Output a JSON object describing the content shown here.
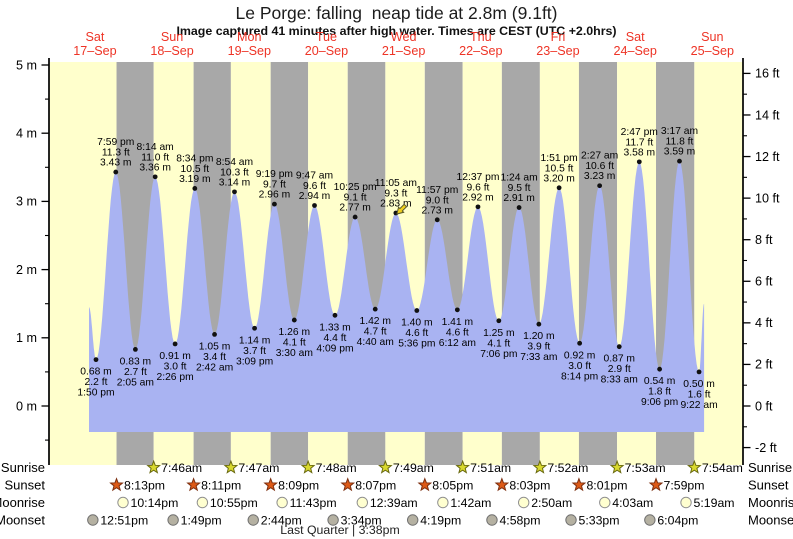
{
  "title": "Le Porge: falling  neap tide at 2.8m (9.1ft)",
  "subtitle": "Image captured 41 minutes after high water. Times are CEST (UTC +2.0hrs)",
  "colors": {
    "background": "#ffffff",
    "day_band": "#ffffcc",
    "night_band": "#a8a8a8",
    "tide_fill": "#a9b3f2",
    "day_label": "#ee3426",
    "axis": "#000000",
    "event_text": "#000000",
    "marker": "#f0cf1e",
    "marker_stroke": "#55552a",
    "sunrise_fill": "#d9d92e",
    "sunrise_stroke": "#6a6a10",
    "sunset_fill": "#dd5a17",
    "sunset_stroke": "#7c2f10",
    "moonrise_fill": "#ffffd0",
    "moonrise_stroke": "#909090",
    "moonset_fill": "#b5b1a2",
    "moonset_stroke": "#707070"
  },
  "chart_data": {
    "type": "area",
    "title": "Le Porge: falling  neap tide at 2.8m (9.1ft)",
    "subtitle": "Image captured 41 minutes after high water. Times are CEST (UTC +2.0hrs)",
    "ylabel_left": "meters",
    "ylabel_right": "feet",
    "y_axis_left": {
      "tick_labels": [
        "5 m",
        "4 m",
        "3 m",
        "2 m",
        "1 m",
        "0 m"
      ],
      "major_ticks_m": [
        0,
        1,
        2,
        3,
        4,
        5
      ],
      "minor_ticks_m": [
        -0.5,
        0.5,
        1.5,
        2.5,
        3.5,
        4.5
      ],
      "range_m": [
        -0.9,
        5.05
      ]
    },
    "y_axis_right": {
      "tick_labels": [
        "16 ft",
        "14 ft",
        "12 ft",
        "10 ft",
        "8 ft",
        "6 ft",
        "4 ft",
        "2 ft",
        "0 ft",
        "-2 ft"
      ],
      "major_ticks_ft": [
        -2,
        0,
        2,
        4,
        6,
        8,
        10,
        12,
        14,
        16
      ],
      "minor_ticks_ft": [
        -1,
        1,
        3,
        5,
        7,
        9,
        11,
        13,
        15
      ]
    },
    "x_axis": {
      "days": [
        {
          "name": "Sat",
          "date": "17–Sep"
        },
        {
          "name": "Sun",
          "date": "18–Sep"
        },
        {
          "name": "Mon",
          "date": "19–Sep"
        },
        {
          "name": "Tue",
          "date": "20–Sep"
        },
        {
          "name": "Wed",
          "date": "21–Sep"
        },
        {
          "name": "Thu",
          "date": "22–Sep"
        },
        {
          "name": "Fri",
          "date": "23–Sep"
        },
        {
          "name": "Sat",
          "date": "24–Sep"
        },
        {
          "name": "Sun",
          "date": "25–Sep"
        }
      ]
    },
    "tide_events": [
      {
        "day": 0,
        "time": "1:50 pm",
        "type": "low",
        "height_m": 0.68,
        "height_ft": 2.2
      },
      {
        "day": 0,
        "time": "7:59 pm",
        "type": "high",
        "height_m": 3.43,
        "height_ft": 11.3
      },
      {
        "day": 1,
        "time": "2:05 am",
        "type": "low",
        "height_m": 0.83,
        "height_ft": 2.7
      },
      {
        "day": 1,
        "time": "8:14 am",
        "type": "high",
        "height_m": 3.36,
        "height_ft": 11.0
      },
      {
        "day": 1,
        "time": "2:26 pm",
        "type": "low",
        "height_m": 0.91,
        "height_ft": 3.0
      },
      {
        "day": 1,
        "time": "8:34 pm",
        "type": "high",
        "height_m": 3.19,
        "height_ft": 10.5
      },
      {
        "day": 2,
        "time": "2:42 am",
        "type": "low",
        "height_m": 1.05,
        "height_ft": 3.4
      },
      {
        "day": 2,
        "time": "8:54 am",
        "type": "high",
        "height_m": 3.14,
        "height_ft": 10.3
      },
      {
        "day": 2,
        "time": "3:09 pm",
        "type": "low",
        "height_m": 1.14,
        "height_ft": 3.7
      },
      {
        "day": 2,
        "time": "9:19 pm",
        "type": "high",
        "height_m": 2.96,
        "height_ft": 9.7
      },
      {
        "day": 3,
        "time": "3:30 am",
        "type": "low",
        "height_m": 1.26,
        "height_ft": 4.1
      },
      {
        "day": 3,
        "time": "9:47 am",
        "type": "high",
        "height_m": 2.94,
        "height_ft": 9.6
      },
      {
        "day": 3,
        "time": "4:09 pm",
        "type": "low",
        "height_m": 1.33,
        "height_ft": 4.4
      },
      {
        "day": 3,
        "time": "10:25 pm",
        "type": "high",
        "height_m": 2.77,
        "height_ft": 9.1
      },
      {
        "day": 4,
        "time": "4:40 am",
        "type": "low",
        "height_m": 1.42,
        "height_ft": 4.7
      },
      {
        "day": 4,
        "time": "11:05 am",
        "type": "high",
        "height_m": 2.83,
        "height_ft": 9.3
      },
      {
        "day": 4,
        "time": "5:36 pm",
        "type": "low",
        "height_m": 1.4,
        "height_ft": 4.6
      },
      {
        "day": 4,
        "time": "11:57 pm",
        "type": "high",
        "height_m": 2.73,
        "height_ft": 9.0
      },
      {
        "day": 5,
        "time": "6:12 am",
        "type": "low",
        "height_m": 1.41,
        "height_ft": 4.6
      },
      {
        "day": 5,
        "time": "12:37 pm",
        "type": "high",
        "height_m": 2.92,
        "height_ft": 9.6
      },
      {
        "day": 5,
        "time": "7:06 pm",
        "type": "low",
        "height_m": 1.25,
        "height_ft": 4.1
      },
      {
        "day": 6,
        "time": "1:24 am",
        "type": "high",
        "height_m": 2.91,
        "height_ft": 9.5
      },
      {
        "day": 6,
        "time": "7:33 am",
        "type": "low",
        "height_m": 1.2,
        "height_ft": 3.9
      },
      {
        "day": 6,
        "time": "1:51 pm",
        "type": "high",
        "height_m": 3.2,
        "height_ft": 10.5
      },
      {
        "day": 6,
        "time": "8:14 pm",
        "type": "low",
        "height_m": 0.92,
        "height_ft": 3.0
      },
      {
        "day": 7,
        "time": "2:27 am",
        "type": "high",
        "height_m": 3.23,
        "height_ft": 10.6
      },
      {
        "day": 7,
        "time": "8:33 am",
        "type": "low",
        "height_m": 0.87,
        "height_ft": 2.9
      },
      {
        "day": 7,
        "time": "2:47 pm",
        "type": "high",
        "height_m": 3.58,
        "height_ft": 11.7
      },
      {
        "day": 7,
        "time": "9:06 pm",
        "type": "low",
        "height_m": 0.54,
        "height_ft": 1.8
      },
      {
        "day": 8,
        "time": "3:17 am",
        "type": "high",
        "height_m": 3.59,
        "height_ft": 11.8
      },
      {
        "day": 8,
        "time": "9:22 am",
        "type": "low",
        "height_m": 0.5,
        "height_ft": 1.6
      }
    ],
    "captured_event_index": 15
  },
  "astro": {
    "rows": [
      {
        "label": "Sunrise",
        "icon": "sunrise-star",
        "entries": [
          {
            "day": 1,
            "time": "7:46am"
          },
          {
            "day": 2,
            "time": "7:47am"
          },
          {
            "day": 3,
            "time": "7:48am"
          },
          {
            "day": 4,
            "time": "7:49am"
          },
          {
            "day": 5,
            "time": "7:51am"
          },
          {
            "day": 6,
            "time": "7:52am"
          },
          {
            "day": 7,
            "time": "7:53am"
          },
          {
            "day": 8,
            "time": "7:54am"
          }
        ]
      },
      {
        "label": "Sunset",
        "icon": "sunset-star",
        "entries": [
          {
            "day": 0,
            "time": "8:13pm"
          },
          {
            "day": 1,
            "time": "8:11pm"
          },
          {
            "day": 2,
            "time": "8:09pm"
          },
          {
            "day": 3,
            "time": "8:07pm"
          },
          {
            "day": 4,
            "time": "8:05pm"
          },
          {
            "day": 5,
            "time": "8:03pm"
          },
          {
            "day": 6,
            "time": "8:01pm"
          },
          {
            "day": 7,
            "time": "7:59pm"
          }
        ]
      },
      {
        "label": "Moonrise",
        "icon": "moonrise-circle",
        "entries": [
          {
            "day": 0,
            "time": "10:14pm"
          },
          {
            "day": 1,
            "time": "10:55pm"
          },
          {
            "day": 2,
            "time": "11:43pm"
          },
          {
            "day": 4,
            "time": "12:39am"
          },
          {
            "day": 5,
            "time": "1:42am"
          },
          {
            "day": 6,
            "time": "2:50am"
          },
          {
            "day": 7,
            "time": "4:03am"
          },
          {
            "day": 8,
            "time": "5:19am"
          }
        ]
      },
      {
        "label": "Moonset",
        "icon": "moonset-circle",
        "entries": [
          {
            "day": 0,
            "time": "12:51pm"
          },
          {
            "day": 1,
            "time": "1:49pm"
          },
          {
            "day": 2,
            "time": "2:44pm"
          },
          {
            "day": 3,
            "time": "3:34pm"
          },
          {
            "day": 4,
            "time": "4:19pm"
          },
          {
            "day": 5,
            "time": "4:58pm"
          },
          {
            "day": 6,
            "time": "5:33pm"
          },
          {
            "day": 7,
            "time": "6:04pm"
          }
        ]
      }
    ],
    "moon_phase": "Last Quarter | 3:38pm"
  }
}
